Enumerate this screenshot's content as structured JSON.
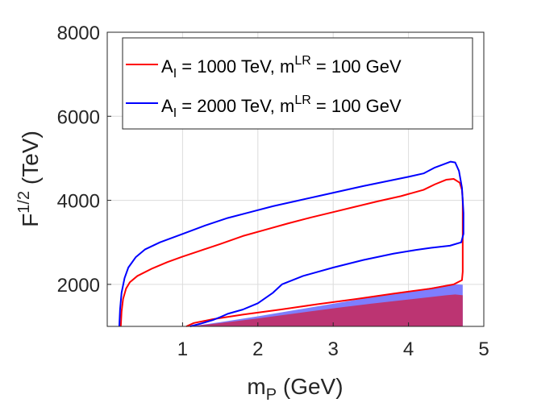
{
  "chart_data": {
    "type": "line",
    "title": "",
    "xlabel": {
      "base": "m",
      "sub": "P",
      "rest": " (GeV)"
    },
    "ylabel": {
      "base": "F",
      "sup": "1/2",
      "rest": " (TeV)"
    },
    "xlim": [
      0,
      5
    ],
    "ylim": [
      1000,
      8000
    ],
    "xticks": [
      1,
      2,
      3,
      4,
      5
    ],
    "yticks": [
      2000,
      4000,
      6000,
      8000
    ],
    "grid": true,
    "legend_position": "top-right",
    "series": [
      {
        "name": "red",
        "label_parts": {
          "a1": "A",
          "a_sub": "I",
          "mid": " = 1000 TeV, m",
          "m_sup": "LR",
          "tail": " = 100 GeV"
        },
        "color": "#ff0000",
        "upper": [
          [
            0.18,
            1000
          ],
          [
            0.19,
            1350
          ],
          [
            0.21,
            1650
          ],
          [
            0.25,
            1900
          ],
          [
            0.3,
            2050
          ],
          [
            0.4,
            2200
          ],
          [
            0.6,
            2380
          ],
          [
            0.8,
            2530
          ],
          [
            1.0,
            2660
          ],
          [
            1.2,
            2780
          ],
          [
            1.5,
            2960
          ],
          [
            1.8,
            3150
          ],
          [
            2.1,
            3300
          ],
          [
            2.4,
            3450
          ],
          [
            2.7,
            3590
          ],
          [
            3.0,
            3720
          ],
          [
            3.3,
            3850
          ],
          [
            3.6,
            3980
          ],
          [
            3.9,
            4100
          ],
          [
            4.2,
            4250
          ],
          [
            4.35,
            4380
          ],
          [
            4.5,
            4490
          ],
          [
            4.6,
            4510
          ],
          [
            4.68,
            4420
          ],
          [
            4.71,
            4250
          ],
          [
            4.72,
            4000
          ]
        ],
        "lower": [
          [
            4.72,
            4000
          ],
          [
            4.72,
            3500
          ],
          [
            4.72,
            2800
          ],
          [
            4.72,
            2300
          ],
          [
            4.71,
            2100
          ],
          [
            4.6,
            2000
          ],
          [
            4.3,
            1900
          ],
          [
            3.8,
            1780
          ],
          [
            3.3,
            1650
          ],
          [
            2.8,
            1530
          ],
          [
            2.3,
            1400
          ],
          [
            1.8,
            1280
          ],
          [
            1.4,
            1170
          ],
          [
            1.15,
            1080
          ],
          [
            1.05,
            1000
          ]
        ]
      },
      {
        "name": "blue",
        "label_parts": {
          "a1": "A",
          "a_sub": "I",
          "mid": " = 2000 TeV, m",
          "m_sup": "LR",
          "tail": " = 100 GeV"
        },
        "color": "#0000ff",
        "upper": [
          [
            0.16,
            1000
          ],
          [
            0.17,
            1400
          ],
          [
            0.19,
            1800
          ],
          [
            0.23,
            2150
          ],
          [
            0.28,
            2400
          ],
          [
            0.38,
            2650
          ],
          [
            0.5,
            2830
          ],
          [
            0.7,
            3000
          ],
          [
            1.0,
            3200
          ],
          [
            1.3,
            3400
          ],
          [
            1.6,
            3580
          ],
          [
            1.9,
            3720
          ],
          [
            2.2,
            3860
          ],
          [
            2.5,
            3980
          ],
          [
            2.8,
            4100
          ],
          [
            3.1,
            4220
          ],
          [
            3.4,
            4340
          ],
          [
            3.7,
            4450
          ],
          [
            4.0,
            4560
          ],
          [
            4.2,
            4640
          ],
          [
            4.35,
            4780
          ],
          [
            4.5,
            4880
          ],
          [
            4.56,
            4920
          ],
          [
            4.62,
            4900
          ],
          [
            4.67,
            4700
          ],
          [
            4.71,
            4300
          ],
          [
            4.73,
            3700
          ],
          [
            4.73,
            3200
          ],
          [
            4.7,
            3000
          ],
          [
            4.55,
            2920
          ],
          [
            4.3,
            2870
          ],
          [
            4.1,
            2820
          ],
          [
            3.8,
            2730
          ],
          [
            3.4,
            2580
          ],
          [
            3.0,
            2400
          ],
          [
            2.6,
            2200
          ],
          [
            2.32,
            2000
          ],
          [
            2.2,
            1800
          ],
          [
            2.0,
            1550
          ],
          [
            1.8,
            1400
          ],
          [
            1.6,
            1300
          ],
          [
            1.5,
            1220
          ],
          [
            1.4,
            1150
          ],
          [
            1.25,
            1070
          ],
          [
            1.1,
            1000
          ]
        ]
      }
    ],
    "fill_regions": [
      {
        "name": "blue-band",
        "color": "#7070ff",
        "opacity": 0.9,
        "top": [
          [
            1.1,
            1000
          ],
          [
            1.5,
            1100
          ],
          [
            2.0,
            1240
          ],
          [
            2.5,
            1390
          ],
          [
            3.0,
            1540
          ],
          [
            3.5,
            1690
          ],
          [
            4.0,
            1830
          ],
          [
            4.3,
            1920
          ],
          [
            4.55,
            2000
          ],
          [
            4.65,
            2000
          ],
          [
            4.72,
            1990
          ]
        ]
      },
      {
        "name": "magenta-region",
        "color": "#c0306a",
        "opacity": 0.95,
        "top": [
          [
            1.1,
            1000
          ],
          [
            1.5,
            1080
          ],
          [
            2.0,
            1190
          ],
          [
            2.5,
            1310
          ],
          [
            3.0,
            1430
          ],
          [
            3.5,
            1540
          ],
          [
            4.0,
            1640
          ],
          [
            4.3,
            1700
          ],
          [
            4.5,
            1740
          ],
          [
            4.62,
            1760
          ],
          [
            4.72,
            1740
          ]
        ]
      }
    ]
  }
}
